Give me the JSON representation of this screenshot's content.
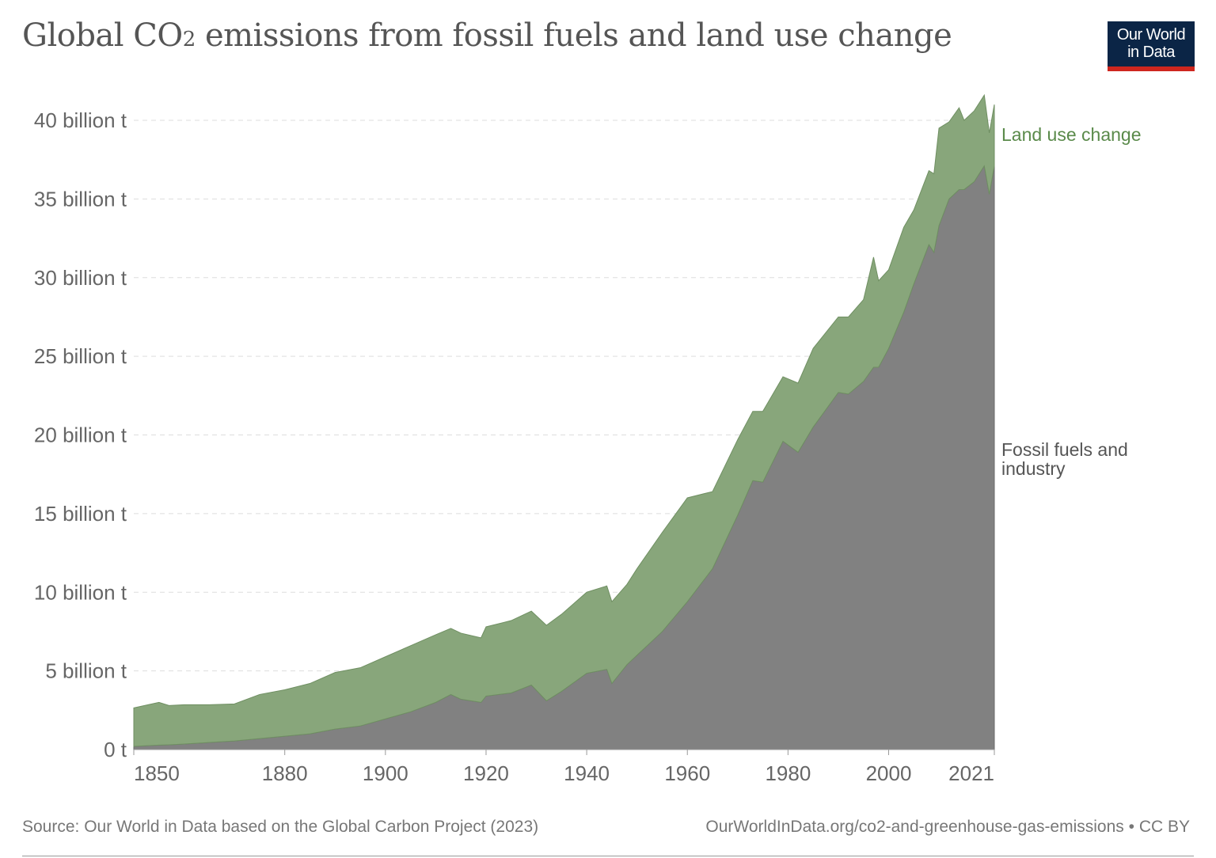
{
  "title_parts": {
    "pre": "Global CO",
    "sub": "2",
    "post": " emissions from fossil fuels and land use change"
  },
  "logo": {
    "line1": "Our World",
    "line2": "in Data"
  },
  "source": "Source: Our World in Data based on the Global Carbon Project (2023)",
  "url": "OurWorldInData.org/co2-and-greenhouse-gas-emissions • CC BY",
  "chart_data": {
    "type": "area",
    "stacked": true,
    "title": "Global CO₂ emissions from fossil fuels and land use change",
    "xlabel": "",
    "ylabel": "",
    "xlim": [
      1850,
      2021
    ],
    "ylim": [
      0,
      40
    ],
    "grid": "horizontal dashed",
    "x_ticks": [
      "1850",
      "1880",
      "1900",
      "1920",
      "1940",
      "1960",
      "1980",
      "2000",
      "2021"
    ],
    "y_ticks": [
      "0 t",
      "5 billion t",
      "10 billion t",
      "15 billion t",
      "20 billion t",
      "25 billion t",
      "30 billion t",
      "35 billion t",
      "40 billion t"
    ],
    "y_tick_values": [
      0,
      5,
      10,
      15,
      20,
      25,
      30,
      35,
      40
    ],
    "unit": "billion t",
    "x": [
      1850,
      1855,
      1857,
      1860,
      1865,
      1870,
      1875,
      1880,
      1885,
      1890,
      1895,
      1900,
      1905,
      1910,
      1913,
      1915,
      1919,
      1920,
      1925,
      1929,
      1932,
      1935,
      1940,
      1944,
      1945,
      1948,
      1950,
      1955,
      1960,
      1965,
      1970,
      1973,
      1975,
      1979,
      1982,
      1985,
      1990,
      1992,
      1995,
      1997,
      1998,
      2000,
      2003,
      2005,
      2008,
      2009,
      2010,
      2012,
      2014,
      2015,
      2017,
      2019,
      2020,
      2021
    ],
    "series": [
      {
        "name": "Fossil fuels and industry",
        "color": "#818181",
        "values": [
          0.2,
          0.28,
          0.3,
          0.35,
          0.45,
          0.55,
          0.7,
          0.85,
          1.0,
          1.3,
          1.5,
          1.95,
          2.4,
          3.0,
          3.5,
          3.2,
          3.0,
          3.4,
          3.6,
          4.1,
          3.1,
          3.7,
          4.85,
          5.1,
          4.2,
          5.4,
          6.0,
          7.5,
          9.4,
          11.5,
          14.9,
          17.1,
          17.0,
          19.6,
          18.9,
          20.5,
          22.7,
          22.6,
          23.4,
          24.3,
          24.3,
          25.5,
          27.8,
          29.6,
          32.1,
          31.6,
          33.3,
          35.0,
          35.6,
          35.6,
          36.1,
          37.1,
          35.3,
          37.1
        ]
      },
      {
        "name": "Land use change",
        "color": "#88a67b",
        "values": [
          2.45,
          2.72,
          2.5,
          2.5,
          2.4,
          2.35,
          2.8,
          2.95,
          3.2,
          3.6,
          3.7,
          3.95,
          4.2,
          4.3,
          4.2,
          4.2,
          4.1,
          4.4,
          4.6,
          4.7,
          4.8,
          4.9,
          5.15,
          5.3,
          5.2,
          5.1,
          5.5,
          6.3,
          6.6,
          4.9,
          4.8,
          4.4,
          4.5,
          4.1,
          4.4,
          5.0,
          4.8,
          4.9,
          5.2,
          7.0,
          5.5,
          5.0,
          5.4,
          4.7,
          4.7,
          5.0,
          6.2,
          4.9,
          5.2,
          4.4,
          4.5,
          4.5,
          3.9,
          3.9
        ]
      }
    ],
    "legend": "inline-right",
    "label_colors": {
      "Land use change": "#5a8a4a",
      "Fossil fuels and industry": "#555555"
    },
    "series_labels": {
      "land": "Land use change",
      "fossil_line1": "Fossil fuels and",
      "fossil_line2": "industry"
    }
  }
}
